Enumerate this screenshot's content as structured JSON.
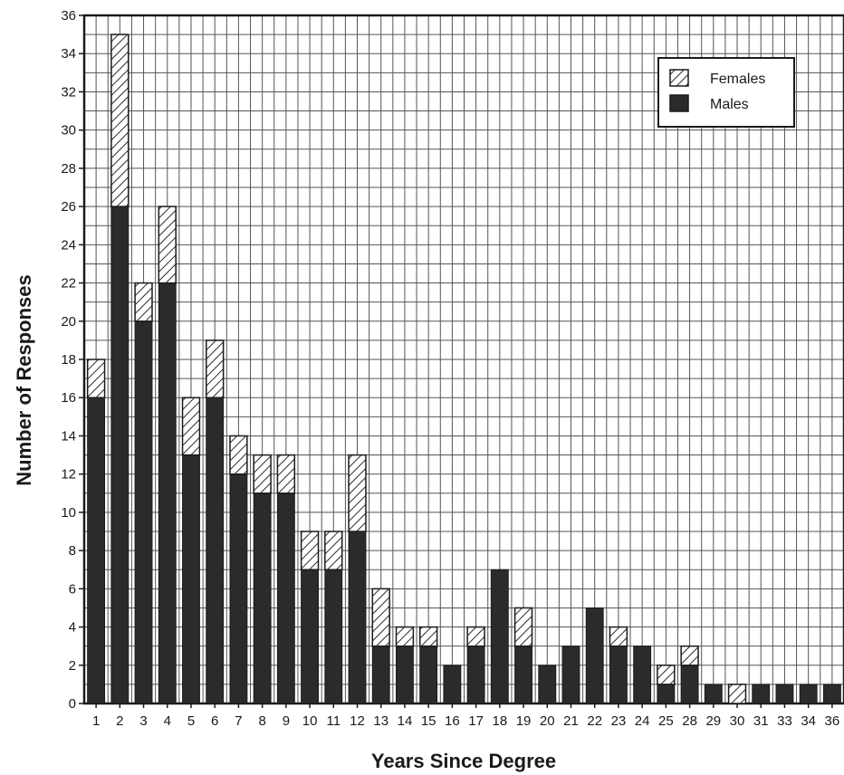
{
  "chart_data": {
    "type": "bar",
    "stacked": true,
    "title": "",
    "xlabel": "Years Since Degree",
    "ylabel": "Number of Responses",
    "ylim": [
      0,
      36
    ],
    "yticks": [
      0,
      2,
      4,
      6,
      8,
      10,
      12,
      14,
      16,
      18,
      20,
      22,
      24,
      26,
      28,
      30,
      32,
      34,
      36
    ],
    "grid": true,
    "legend_position": "top-right",
    "categories": [
      "1",
      "2",
      "3",
      "4",
      "5",
      "6",
      "7",
      "8",
      "9",
      "10",
      "11",
      "12",
      "13",
      "14",
      "15",
      "16",
      "17",
      "18",
      "19",
      "20",
      "21",
      "22",
      "23",
      "24",
      "25",
      "28",
      "29",
      "30",
      "31",
      "33",
      "34",
      "36"
    ],
    "series": [
      {
        "name": "Males",
        "fill": "solid",
        "color": "#2b2b2b",
        "values": [
          16,
          26,
          20,
          22,
          13,
          16,
          12,
          11,
          11,
          7,
          7,
          9,
          3,
          3,
          3,
          2,
          3,
          7,
          3,
          2,
          3,
          5,
          3,
          3,
          1,
          2,
          1,
          0,
          1,
          1,
          1,
          1
        ]
      },
      {
        "name": "Females",
        "fill": "hatched",
        "color": "#2b2b2b",
        "values": [
          2,
          9,
          2,
          4,
          3,
          3,
          2,
          2,
          2,
          2,
          2,
          4,
          3,
          1,
          1,
          0,
          1,
          0,
          2,
          0,
          0,
          0,
          1,
          0,
          1,
          1,
          0,
          1,
          0,
          0,
          0,
          0
        ]
      }
    ]
  }
}
